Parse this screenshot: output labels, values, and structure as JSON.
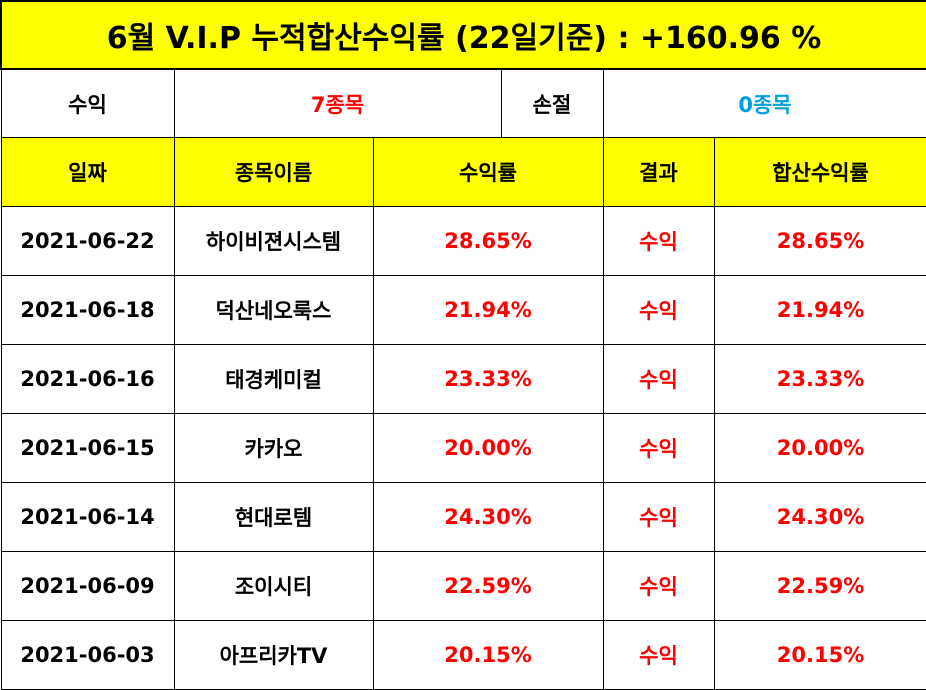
{
  "title": "6월 V.I.P 누적합산수익률 (22일기준) : +160.96 %",
  "summary": {
    "profit_label": "수익",
    "profit_value": "7종목",
    "loss_label": "손절",
    "loss_value": "0종목"
  },
  "columns": [
    "일짜",
    "종목이름",
    "수익률",
    "결과",
    "합산수익률"
  ],
  "rows": [
    {
      "date": "2021-06-22",
      "name": "하이비젼시스템",
      "return": "28.65%",
      "result": "수익",
      "cumulative": "28.65%"
    },
    {
      "date": "2021-06-18",
      "name": "덕산네오룩스",
      "return": "21.94%",
      "result": "수익",
      "cumulative": "21.94%"
    },
    {
      "date": "2021-06-16",
      "name": "태경케미컬",
      "return": "23.33%",
      "result": "수익",
      "cumulative": "23.33%"
    },
    {
      "date": "2021-06-15",
      "name": "카카오",
      "return": "20.00%",
      "result": "수익",
      "cumulative": "20.00%"
    },
    {
      "date": "2021-06-14",
      "name": "현대로템",
      "return": "24.30%",
      "result": "수익",
      "cumulative": "24.30%"
    },
    {
      "date": "2021-06-09",
      "name": "조이시티",
      "return": "22.59%",
      "result": "수익",
      "cumulative": "22.59%"
    },
    {
      "date": "2021-06-03",
      "name": "아프리카TV",
      "return": "20.15%",
      "result": "수익",
      "cumulative": "20.15%"
    }
  ],
  "colors": {
    "header_bg": "#ffff00",
    "profit_text": "#ff0000",
    "loss_text": "#00a0e0"
  }
}
